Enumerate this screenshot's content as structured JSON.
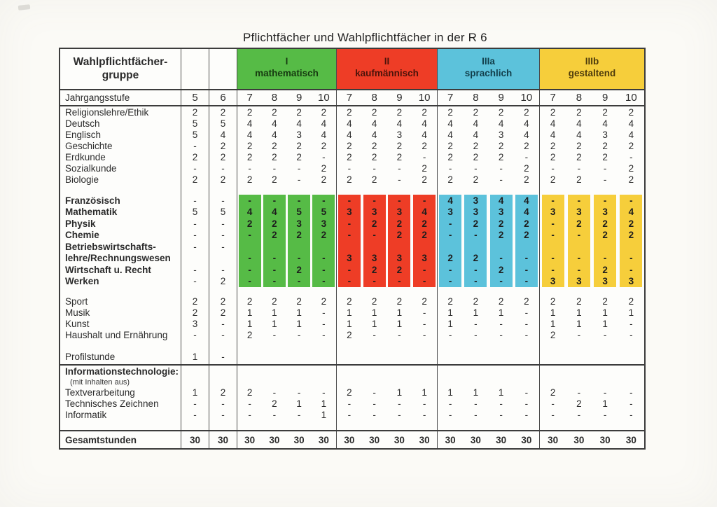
{
  "title": "Pflichtfächer und Wahlpflichtfächer in der R 6",
  "table": {
    "corner_line1": "Wahlpflichtfächer-",
    "corner_line2": "gruppe",
    "groups": [
      {
        "id": "I",
        "label": "mathematisch",
        "color": "#56bb46",
        "text_color": "#163a10"
      },
      {
        "id": "II",
        "label": "kaufmännisch",
        "color": "#ee3d26",
        "text_color": "#4b130a"
      },
      {
        "id": "IIIa",
        "label": "sprachlich",
        "color": "#5cc2db",
        "text_color": "#123f4b"
      },
      {
        "id": "IIIb",
        "label": "gestaltend",
        "color": "#f6ce3b",
        "text_color": "#4d3b0c"
      }
    ],
    "jahrgangsstufe_label": "Jahrgangsstufe",
    "base_years": [
      "5",
      "6"
    ],
    "group_years": [
      "7",
      "8",
      "9",
      "10"
    ],
    "core_subjects": [
      {
        "label": "Religionslehre/Ethik",
        "values": [
          "2",
          "2",
          "2",
          "2",
          "2",
          "2",
          "2",
          "2",
          "2",
          "2",
          "2",
          "2",
          "2",
          "2",
          "2",
          "2",
          "2",
          "2"
        ]
      },
      {
        "label": "Deutsch",
        "values": [
          "5",
          "5",
          "4",
          "4",
          "4",
          "4",
          "4",
          "4",
          "4",
          "4",
          "4",
          "4",
          "4",
          "4",
          "4",
          "4",
          "4",
          "4"
        ]
      },
      {
        "label": "Englisch",
        "values": [
          "5",
          "4",
          "4",
          "4",
          "3",
          "4",
          "4",
          "4",
          "3",
          "4",
          "4",
          "4",
          "3",
          "4",
          "4",
          "4",
          "3",
          "4"
        ]
      },
      {
        "label": "Geschichte",
        "values": [
          "-",
          "2",
          "2",
          "2",
          "2",
          "2",
          "2",
          "2",
          "2",
          "2",
          "2",
          "2",
          "2",
          "2",
          "2",
          "2",
          "2",
          "2"
        ]
      },
      {
        "label": "Erdkunde",
        "values": [
          "2",
          "2",
          "2",
          "2",
          "2",
          "-",
          "2",
          "2",
          "2",
          "-",
          "2",
          "2",
          "2",
          "-",
          "2",
          "2",
          "2",
          "-"
        ]
      },
      {
        "label": "Sozialkunde",
        "values": [
          "-",
          "-",
          "-",
          "-",
          "-",
          "2",
          "-",
          "-",
          "-",
          "2",
          "-",
          "-",
          "-",
          "2",
          "-",
          "-",
          "-",
          "2"
        ]
      },
      {
        "label": "Biologie",
        "values": [
          "2",
          "2",
          "2",
          "2",
          "-",
          "2",
          "2",
          "2",
          "-",
          "2",
          "2",
          "2",
          "-",
          "2",
          "2",
          "2",
          "-",
          "2"
        ]
      }
    ],
    "wahlpflicht_subjects": [
      {
        "label": "Französisch",
        "values": [
          "-",
          "-",
          "-",
          "-",
          "-",
          "-",
          "-",
          "-",
          "-",
          "-",
          "4",
          "3",
          "4",
          "4",
          "-",
          "-",
          "-",
          "-"
        ]
      },
      {
        "label": "Mathematik",
        "values": [
          "5",
          "5",
          "4",
          "4",
          "5",
          "5",
          "3",
          "3",
          "3",
          "4",
          "3",
          "3",
          "3",
          "4",
          "3",
          "3",
          "3",
          "4"
        ]
      },
      {
        "label": "Physik",
        "values": [
          "-",
          "-",
          "2",
          "2",
          "3",
          "3",
          "-",
          "2",
          "2",
          "2",
          "-",
          "2",
          "2",
          "2",
          "-",
          "2",
          "2",
          "2"
        ]
      },
      {
        "label": "Chemie",
        "values": [
          "-",
          "-",
          "-",
          "2",
          "2",
          "2",
          "-",
          "-",
          "2",
          "2",
          "-",
          "-",
          "2",
          "2",
          "-",
          "-",
          "2",
          "2"
        ]
      },
      {
        "label": "Betriebswirtschafts-",
        "values": [
          "-",
          "-",
          "",
          "",
          "",
          "",
          "",
          "",
          "",
          "",
          "",
          "",
          "",
          "",
          "",
          "",
          "",
          ""
        ]
      },
      {
        "label": "lehre/Rechnungswesen",
        "values": [
          "",
          "",
          "-",
          "-",
          "-",
          "-",
          "3",
          "3",
          "3",
          "3",
          "2",
          "2",
          "-",
          "-",
          "-",
          "-",
          "-",
          "-"
        ]
      },
      {
        "label": "Wirtschaft u. Recht",
        "values": [
          "-",
          "-",
          "-",
          "-",
          "2",
          "-",
          "-",
          "2",
          "2",
          "-",
          "-",
          "-",
          "2",
          "-",
          "-",
          "-",
          "2",
          "-"
        ]
      },
      {
        "label": "Werken",
        "values": [
          "-",
          "2",
          "-",
          "-",
          "-",
          "-",
          "-",
          "-",
          "-",
          "-",
          "-",
          "-",
          "-",
          "-",
          "3",
          "3",
          "3",
          "3"
        ]
      }
    ],
    "general_subjects": [
      {
        "label": "Sport",
        "values": [
          "2",
          "2",
          "2",
          "2",
          "2",
          "2",
          "2",
          "2",
          "2",
          "2",
          "2",
          "2",
          "2",
          "2",
          "2",
          "2",
          "2",
          "2"
        ]
      },
      {
        "label": "Musik",
        "values": [
          "2",
          "2",
          "1",
          "1",
          "1",
          "-",
          "1",
          "1",
          "1",
          "-",
          "1",
          "1",
          "1",
          "-",
          "1",
          "1",
          "1",
          "1"
        ]
      },
      {
        "label": "Kunst",
        "values": [
          "3",
          "-",
          "1",
          "1",
          "1",
          "-",
          "1",
          "1",
          "1",
          "-",
          "1",
          "-",
          "-",
          "-",
          "1",
          "1",
          "1",
          "-"
        ]
      },
      {
        "label": "Haushalt und Ernährung",
        "values": [
          "-",
          "-",
          "2",
          "-",
          "-",
          "-",
          "2",
          "-",
          "-",
          "-",
          "-",
          "-",
          "-",
          "-",
          "2",
          "-",
          "-",
          "-"
        ]
      }
    ],
    "profilstunde": {
      "label": "Profilstunde",
      "values": [
        "1",
        "-",
        "",
        "",
        "",
        "",
        "",
        "",
        "",
        "",
        "",
        "",
        "",
        "",
        "",
        "",
        "",
        ""
      ]
    },
    "it_section": {
      "heading": "Informationstechnologie:",
      "subheading": "(mit Inhalten aus)",
      "rows": [
        {
          "label": "Textverarbeitung",
          "values": [
            "1",
            "2",
            "2",
            "-",
            "-",
            "-",
            "2",
            "-",
            "1",
            "1",
            "1",
            "1",
            "1",
            "-",
            "2",
            "-",
            "-",
            "-"
          ]
        },
        {
          "label": "Technisches  Zeichnen",
          "values": [
            "-",
            "-",
            "-",
            "2",
            "1",
            "1",
            "-",
            "-",
            "-",
            "-",
            "-",
            "-",
            "-",
            "-",
            "-",
            "2",
            "1",
            "-"
          ]
        },
        {
          "label": "Informatik",
          "values": [
            "-",
            "-",
            "-",
            "-",
            "-",
            "1",
            "-",
            "-",
            "-",
            "-",
            "-",
            "-",
            "-",
            "-",
            "-",
            "-",
            "-",
            "-"
          ]
        }
      ]
    },
    "gesamt": {
      "label": "Gesamtstunden",
      "values": [
        "30",
        "30",
        "30",
        "30",
        "30",
        "30",
        "30",
        "30",
        "30",
        "30",
        "30",
        "30",
        "30",
        "30",
        "30",
        "30",
        "30",
        "30"
      ]
    }
  }
}
